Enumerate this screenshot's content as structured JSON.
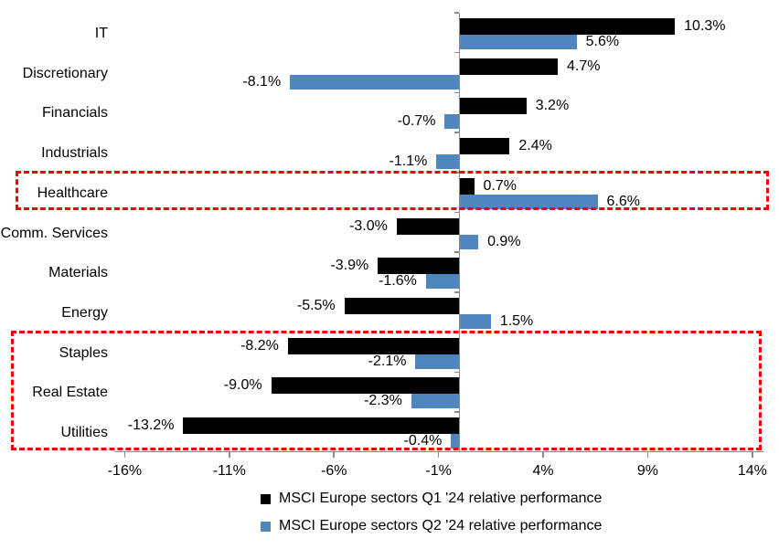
{
  "chart_data": {
    "type": "bar",
    "orientation": "horizontal",
    "title": "",
    "categories": [
      "IT",
      "Discretionary",
      "Financials",
      "Industrials",
      "Healthcare",
      "Comm. Services",
      "Materials",
      "Energy",
      "Staples",
      "Real Estate",
      "Utilities"
    ],
    "series": [
      {
        "name": "MSCI Europe sectors Q1 '24 relative performance",
        "color": "#000000",
        "values": [
          10.3,
          4.7,
          3.2,
          2.4,
          0.7,
          -3.0,
          -3.9,
          -5.5,
          -8.2,
          -9.0,
          -13.2
        ]
      },
      {
        "name": "MSCI Europe sectors Q2 '24 relative performance",
        "color": "#4f86be",
        "values": [
          5.6,
          -8.1,
          -0.7,
          -1.1,
          6.6,
          0.9,
          -1.6,
          1.5,
          -2.1,
          -2.3,
          -0.4
        ]
      }
    ],
    "data_label_suffix": "%",
    "x_ticks": [
      -16,
      -11,
      -6,
      -1,
      4,
      9,
      14
    ],
    "x_tick_labels": [
      "-16%",
      "-11%",
      "-6%",
      "-1%",
      "4%",
      "9%",
      "14%"
    ],
    "xlim": [
      -16.5,
      14.5
    ],
    "grid": false,
    "data_labels": true,
    "legend_position": "bottom",
    "highlights": [
      {
        "categories": [
          "Healthcare"
        ],
        "style": "red-dashed-box"
      },
      {
        "categories": [
          "Staples",
          "Real Estate",
          "Utilities"
        ],
        "style": "red-dashed-box"
      }
    ],
    "colors": {
      "q1_bar": "#000000",
      "q2_bar": "#4f86be",
      "highlight_box": "#f40000",
      "axis": "#8c8c8c",
      "text": "#000000"
    }
  }
}
